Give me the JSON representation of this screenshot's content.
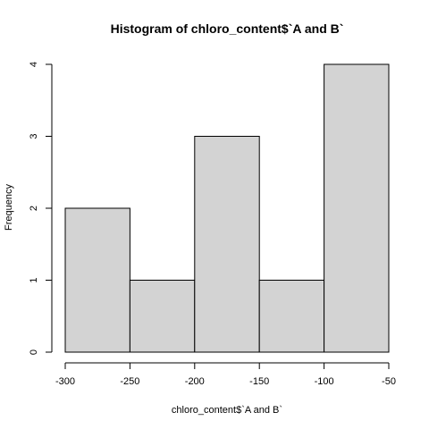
{
  "chart_data": {
    "type": "bar",
    "title": "Histogram of chloro_content$`A and B`",
    "xlabel": "chloro_content$`A and B`",
    "ylabel": "Frequency",
    "bins": [
      {
        "start": -300,
        "end": -250,
        "count": 2
      },
      {
        "start": -250,
        "end": -200,
        "count": 1
      },
      {
        "start": -200,
        "end": -150,
        "count": 3
      },
      {
        "start": -150,
        "end": -100,
        "count": 1
      },
      {
        "start": -100,
        "end": -50,
        "count": 4
      }
    ],
    "xlim": [
      -300,
      -50
    ],
    "ylim": [
      0,
      4
    ],
    "xticks": [
      -300,
      -250,
      -200,
      -150,
      -100,
      -50
    ],
    "yticks": [
      0,
      1,
      2,
      3,
      4
    ],
    "bar_color": "#d3d3d3",
    "grid": false,
    "legend": "none"
  }
}
